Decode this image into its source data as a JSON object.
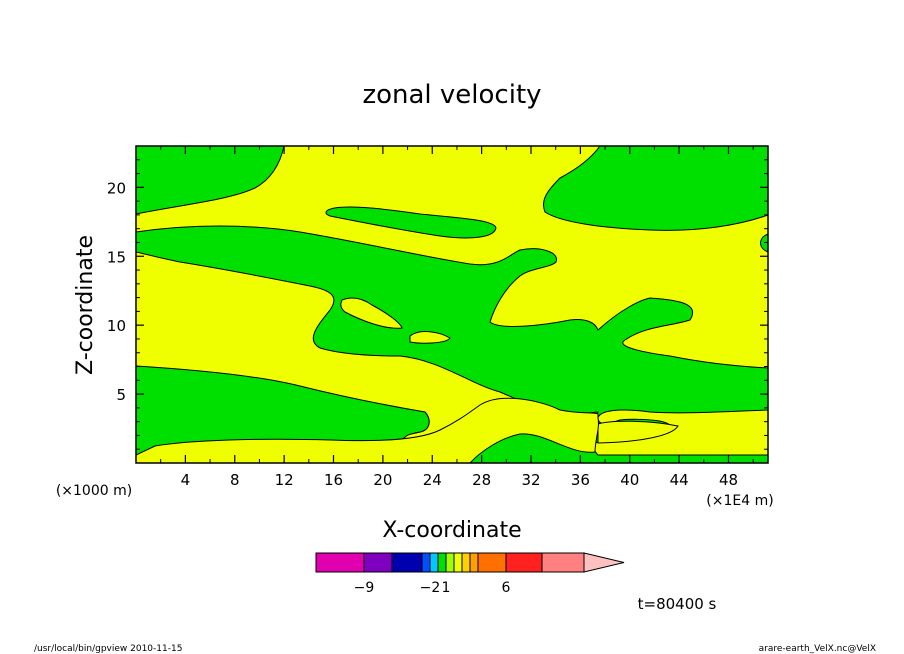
{
  "chart_data": {
    "type": "heatmap",
    "title": "zonal velocity",
    "xlabel": "X-coordinate",
    "ylabel": "Z-coordinate",
    "x_unit_label": "(×1E4 m)",
    "y_unit_label": "(×1000 m)",
    "xlim": [
      0,
      51.2
    ],
    "ylim": [
      0,
      23
    ],
    "x_ticks": [
      4,
      8,
      12,
      16,
      20,
      24,
      28,
      32,
      36,
      40,
      44,
      48
    ],
    "y_ticks": [
      5,
      10,
      15,
      20
    ],
    "colors": {
      "region_a": "#00e000",
      "region_b": "#f0ff00"
    },
    "colorbar": {
      "colors": [
        "#e000b0",
        "#8000c0",
        "#0000b0",
        "#0050ff",
        "#00c8ff",
        "#00e000",
        "#a0ff00",
        "#f0ff00",
        "#ffd000",
        "#ffa000",
        "#ff7000",
        "#ff2020",
        "#ff8080",
        "#ffc0c0"
      ],
      "tick_labels": [
        {
          "label": "−9",
          "value": -9
        },
        {
          "label": "−2",
          "value": -2
        },
        {
          "label": "1",
          "value": 1
        },
        {
          "label": "6",
          "value": 6
        }
      ]
    },
    "time_label": "t=80400 s"
  },
  "footer": {
    "left": "/usr/local/bin/gpview  2010-11-15",
    "right": "arare-earth_VelX.nc@VelX"
  }
}
